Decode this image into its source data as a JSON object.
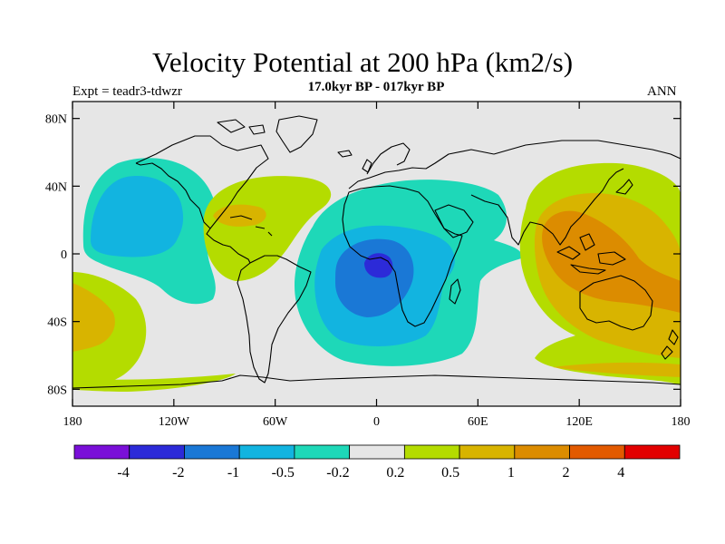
{
  "title": "Velocity Potential at 200 hPa (km2/s)",
  "subtitle": "17.0kyr BP - 017kyr BP",
  "experiment": "Expt = teadr3-tdwzr",
  "season": "ANN",
  "map": {
    "projection": "cylindrical equidistant",
    "lon_range": [
      -180,
      180
    ],
    "lat_range": [
      -90,
      90
    ],
    "lat_ticks": [
      {
        "value": 80,
        "label": "80N"
      },
      {
        "value": 40,
        "label": "40N"
      },
      {
        "value": 0,
        "label": "0"
      },
      {
        "value": -40,
        "label": "40S"
      },
      {
        "value": -80,
        "label": "80S"
      }
    ],
    "lon_ticks": [
      {
        "value": -180,
        "label": "180"
      },
      {
        "value": -120,
        "label": "120W"
      },
      {
        "value": -60,
        "label": "60W"
      },
      {
        "value": 0,
        "label": "0"
      },
      {
        "value": 60,
        "label": "60E"
      },
      {
        "value": 120,
        "label": "120E"
      },
      {
        "value": 180,
        "label": "180"
      }
    ]
  },
  "colorbar": {
    "colors": [
      "#7a0fd8",
      "#2c2ad8",
      "#1a78d6",
      "#12b4e0",
      "#1ed8b8",
      "#e6e6e6",
      "#b4dc00",
      "#d8b400",
      "#dc8c00",
      "#e25a00",
      "#e20000"
    ],
    "labels": [
      "-4",
      "-2",
      "-1",
      "-0.5",
      "-0.2",
      "0.2",
      "0.5",
      "1",
      "2",
      "4"
    ]
  },
  "field_regions": [
    {
      "level": "-0.2",
      "color": "#1ed8b8",
      "region": "North Pacific"
    },
    {
      "level": "-0.5",
      "color": "#12b4e0",
      "region": "North Pacific"
    },
    {
      "level": "0.2",
      "color": "#b4dc00",
      "region": "North Atlantic / Caribbean"
    },
    {
      "level": "-0.2",
      "color": "#1ed8b8",
      "region": "Atlantic / Africa"
    },
    {
      "level": "-0.5",
      "color": "#12b4e0",
      "region": "South Atlantic / Africa"
    },
    {
      "level": "-1",
      "color": "#1a78d6",
      "region": "Gulf of Guinea"
    },
    {
      "level": "-2",
      "color": "#2c2ad8",
      "region": "Gulf of Guinea"
    },
    {
      "level": "0.2",
      "color": "#b4dc00",
      "region": "Indo-Pacific"
    },
    {
      "level": "0.5",
      "color": "#d8b400",
      "region": "Maritime Continent"
    },
    {
      "level": "1",
      "color": "#dc8c00",
      "region": "Maritime Continent / Australia"
    },
    {
      "level": "0.5",
      "color": "#d8b400",
      "region": "Southwest Pacific"
    },
    {
      "level": "0.2",
      "color": "#b4dc00",
      "region": "South Pacific"
    }
  ]
}
